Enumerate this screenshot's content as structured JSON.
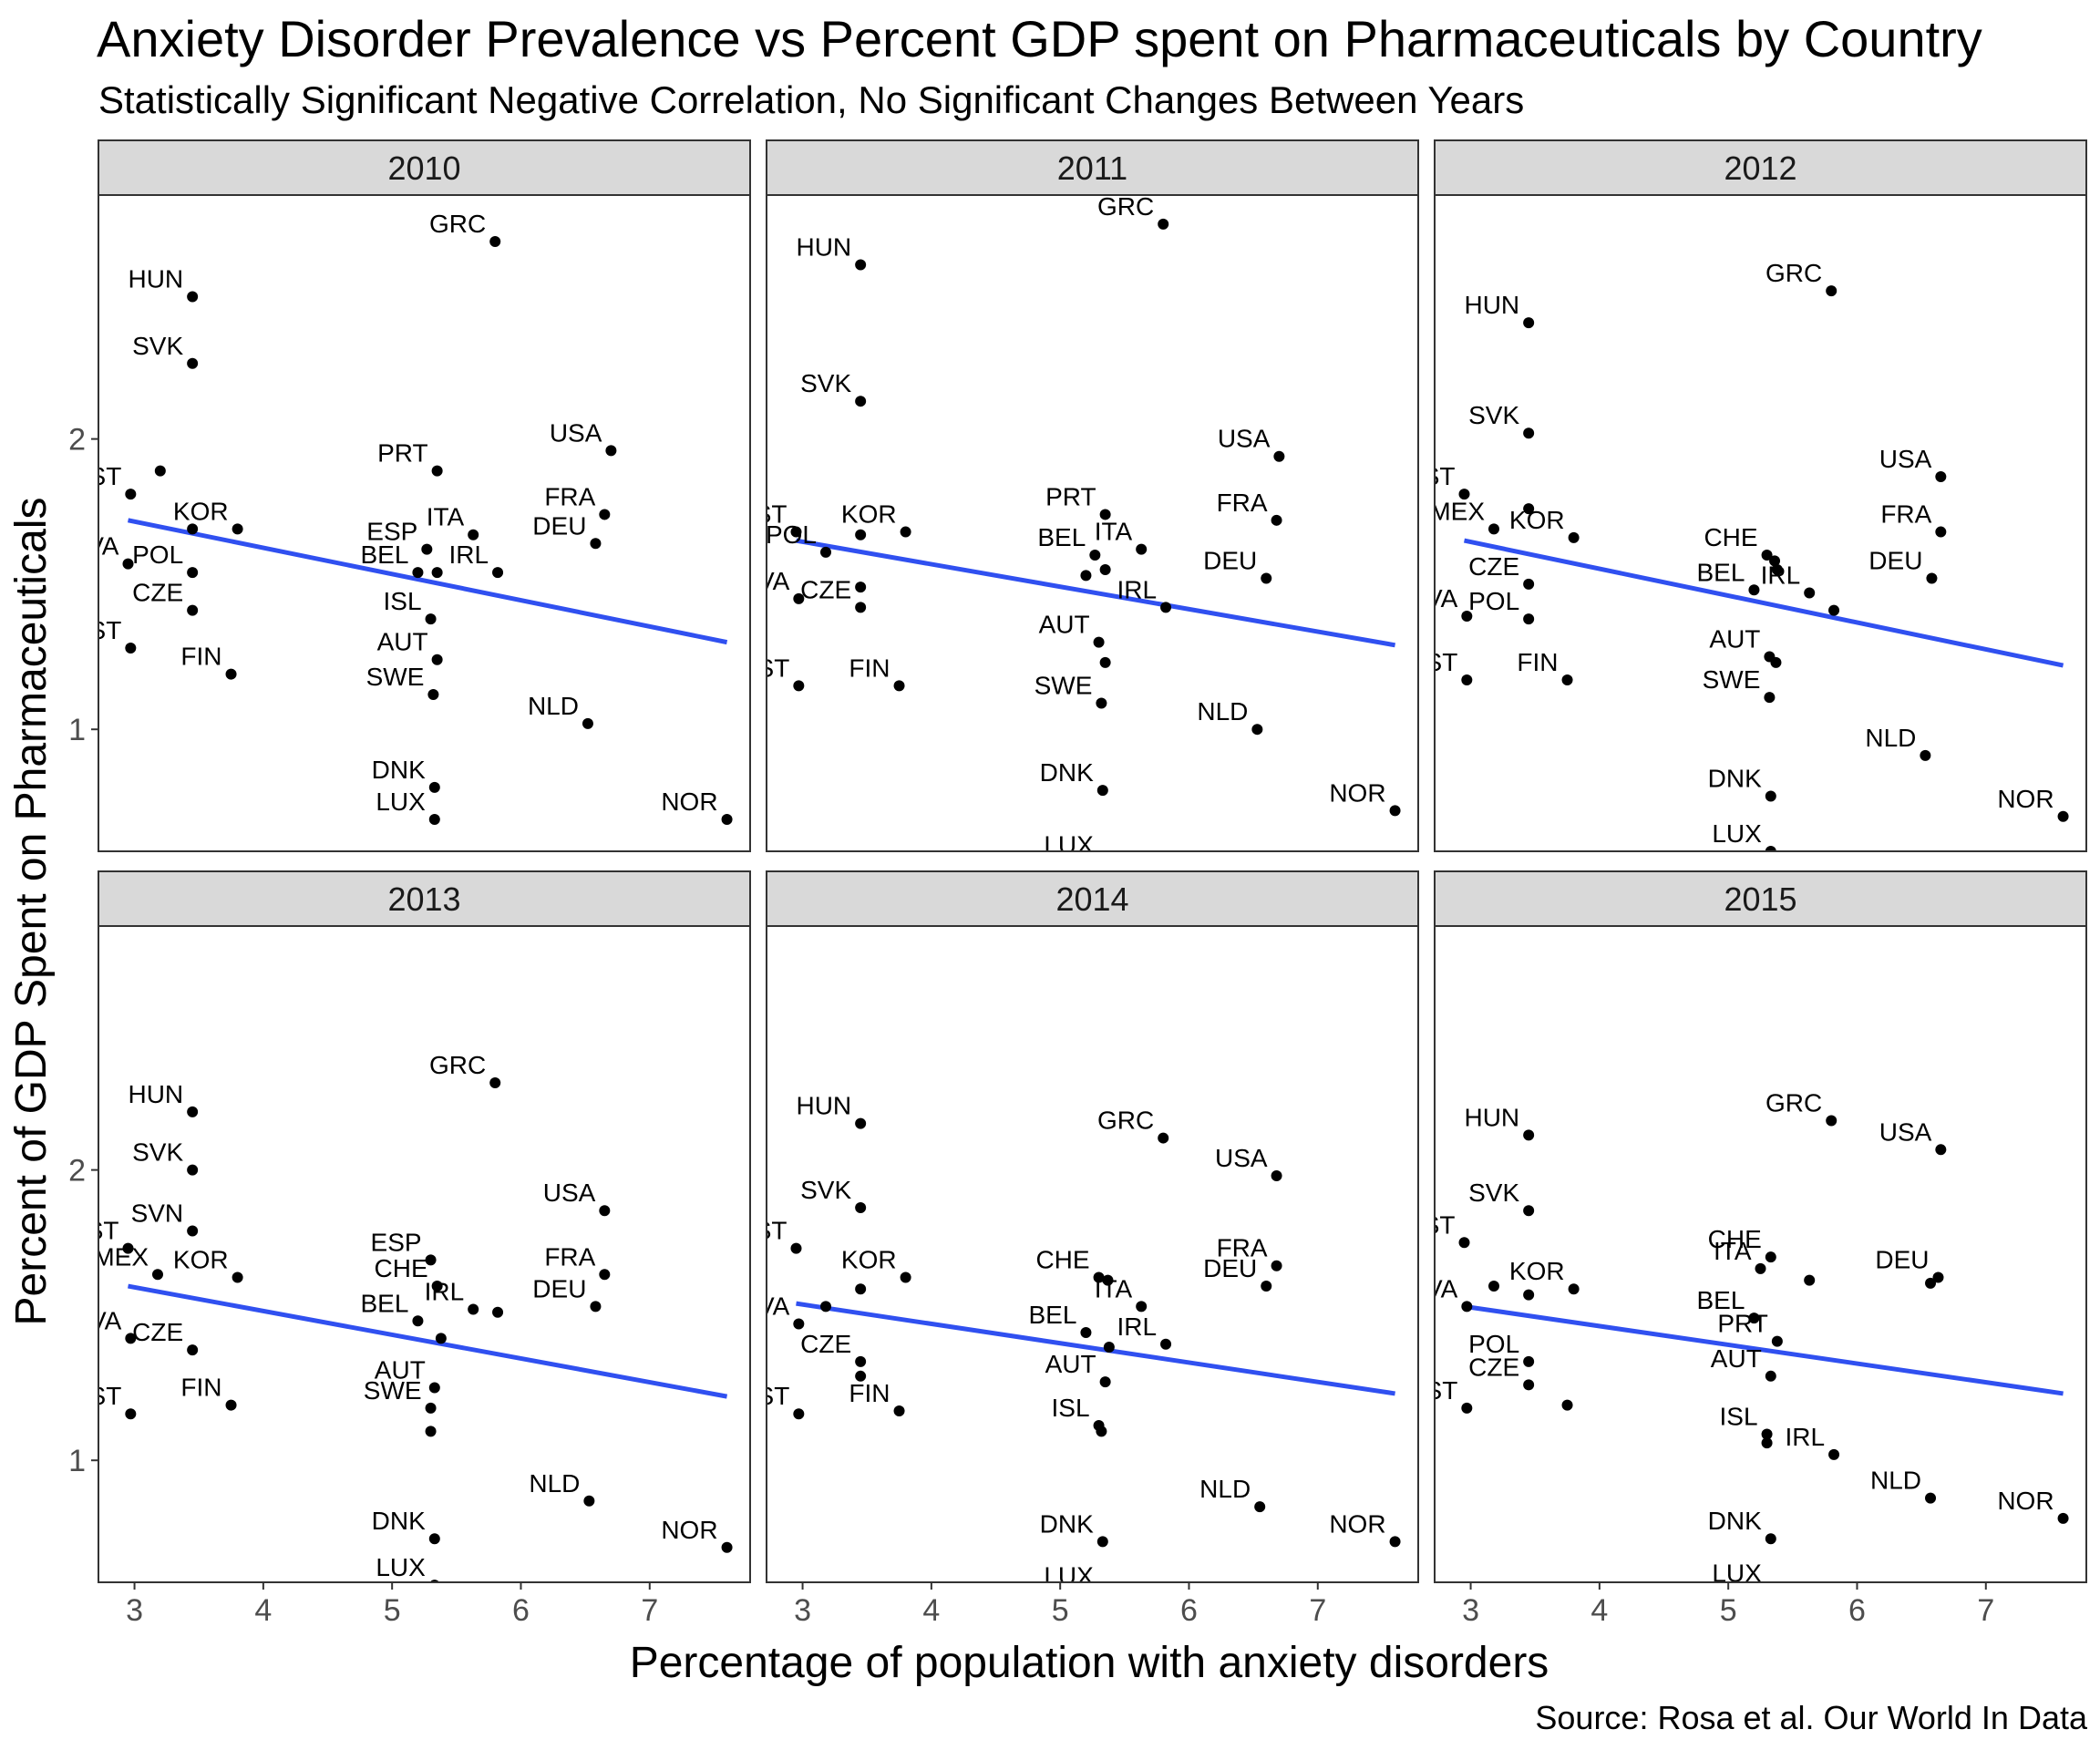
{
  "chart_data": {
    "type": "scatter",
    "title": "Anxiety Disorder Prevalence vs Percent GDP spent on Pharmaceuticals by Country",
    "subtitle": "Statistically Significant Negative Correlation, No Significant Changes Between Years",
    "xlabel": "Percentage of population with anxiety disorders",
    "ylabel": "Percent of GDP Spent on Pharmaceuticals",
    "caption": "Source: Rosa et al. Our World In Data",
    "xlim": [
      2.72,
      7.78
    ],
    "ylim": [
      0.58,
      2.84
    ],
    "x_ticks": [
      3,
      4,
      5,
      6,
      7
    ],
    "y_ticks": [
      1,
      2
    ],
    "grid": false,
    "facets": [
      {
        "panel": "2010",
        "trend": {
          "x": [
            2.95,
            7.6
          ],
          "y": [
            1.72,
            1.3
          ]
        },
        "points": [
          {
            "label": "GRC",
            "x": 5.8,
            "y": 2.68
          },
          {
            "label": "HUN",
            "x": 3.45,
            "y": 2.49
          },
          {
            "label": "SVK",
            "x": 3.45,
            "y": 2.26
          },
          {
            "label": "USA",
            "x": 6.7,
            "y": 1.96
          },
          {
            "label": "PRT",
            "x": 5.35,
            "y": 1.89
          },
          {
            "label": "",
            "x": 3.2,
            "y": 1.89
          },
          {
            "label": "EST",
            "x": 2.97,
            "y": 1.81
          },
          {
            "label": "FRA",
            "x": 6.65,
            "y": 1.74
          },
          {
            "label": "KOR",
            "x": 3.8,
            "y": 1.69
          },
          {
            "label": "",
            "x": 3.45,
            "y": 1.69
          },
          {
            "label": "ITA",
            "x": 5.63,
            "y": 1.67
          },
          {
            "label": "DEU",
            "x": 6.58,
            "y": 1.64
          },
          {
            "label": "ESP",
            "x": 5.27,
            "y": 1.62
          },
          {
            "label": "LVA",
            "x": 2.95,
            "y": 1.57
          },
          {
            "label": "POL",
            "x": 3.45,
            "y": 1.54
          },
          {
            "label": "BEL",
            "x": 5.2,
            "y": 1.54
          },
          {
            "label": "IRL",
            "x": 5.82,
            "y": 1.54
          },
          {
            "label": "",
            "x": 5.35,
            "y": 1.54
          },
          {
            "label": "CZE",
            "x": 3.45,
            "y": 1.41
          },
          {
            "label": "ISL",
            "x": 5.3,
            "y": 1.38
          },
          {
            "label": "EST",
            "x": 2.97,
            "y": 1.28
          },
          {
            "label": "AUT",
            "x": 5.35,
            "y": 1.24
          },
          {
            "label": "FIN",
            "x": 3.75,
            "y": 1.19
          },
          {
            "label": "SWE",
            "x": 5.32,
            "y": 1.12
          },
          {
            "label": "NLD",
            "x": 6.52,
            "y": 1.02
          },
          {
            "label": "DNK",
            "x": 5.33,
            "y": 0.8
          },
          {
            "label": "LUX",
            "x": 5.33,
            "y": 0.69
          },
          {
            "label": "NOR",
            "x": 7.6,
            "y": 0.69
          }
        ]
      },
      {
        "panel": "2011",
        "trend": {
          "x": [
            2.95,
            7.6
          ],
          "y": [
            1.65,
            1.29
          ]
        },
        "points": [
          {
            "label": "GRC",
            "x": 5.8,
            "y": 2.74
          },
          {
            "label": "HUN",
            "x": 3.45,
            "y": 2.6
          },
          {
            "label": "SVK",
            "x": 3.45,
            "y": 2.13
          },
          {
            "label": "USA",
            "x": 6.7,
            "y": 1.94
          },
          {
            "label": "PRT",
            "x": 5.35,
            "y": 1.74
          },
          {
            "label": "FRA",
            "x": 6.68,
            "y": 1.72
          },
          {
            "label": "EST",
            "x": 2.95,
            "y": 1.68
          },
          {
            "label": "KOR",
            "x": 3.8,
            "y": 1.68
          },
          {
            "label": "",
            "x": 3.45,
            "y": 1.67
          },
          {
            "label": "ITA",
            "x": 5.63,
            "y": 1.62
          },
          {
            "label": "POL",
            "x": 3.18,
            "y": 1.61
          },
          {
            "label": "BEL",
            "x": 5.27,
            "y": 1.6
          },
          {
            "label": "",
            "x": 5.35,
            "y": 1.55
          },
          {
            "label": "",
            "x": 5.2,
            "y": 1.53
          },
          {
            "label": "DEU",
            "x": 6.6,
            "y": 1.52
          },
          {
            "label": "",
            "x": 3.45,
            "y": 1.49
          },
          {
            "label": "LVA",
            "x": 2.97,
            "y": 1.45
          },
          {
            "label": "CZE",
            "x": 3.45,
            "y": 1.42
          },
          {
            "label": "IRL",
            "x": 5.82,
            "y": 1.42
          },
          {
            "label": "AUT",
            "x": 5.3,
            "y": 1.3
          },
          {
            "label": "",
            "x": 5.35,
            "y": 1.23
          },
          {
            "label": "EST",
            "x": 2.97,
            "y": 1.15
          },
          {
            "label": "FIN",
            "x": 3.75,
            "y": 1.15
          },
          {
            "label": "SWE",
            "x": 5.32,
            "y": 1.09
          },
          {
            "label": "NLD",
            "x": 6.53,
            "y": 1.0
          },
          {
            "label": "DNK",
            "x": 5.33,
            "y": 0.79
          },
          {
            "label": "NOR",
            "x": 7.6,
            "y": 0.72
          },
          {
            "label": "LUX",
            "x": 5.33,
            "y": 0.54
          }
        ]
      },
      {
        "panel": "2012",
        "trend": {
          "x": [
            2.95,
            7.6
          ],
          "y": [
            1.65,
            1.22
          ]
        },
        "points": [
          {
            "label": "GRC",
            "x": 5.8,
            "y": 2.51
          },
          {
            "label": "HUN",
            "x": 3.45,
            "y": 2.4
          },
          {
            "label": "SVK",
            "x": 3.45,
            "y": 2.02
          },
          {
            "label": "USA",
            "x": 6.65,
            "y": 1.87
          },
          {
            "label": "EST",
            "x": 2.95,
            "y": 1.81
          },
          {
            "label": "",
            "x": 3.45,
            "y": 1.76
          },
          {
            "label": "MEX",
            "x": 3.18,
            "y": 1.69
          },
          {
            "label": "FRA",
            "x": 6.65,
            "y": 1.68
          },
          {
            "label": "KOR",
            "x": 3.8,
            "y": 1.66
          },
          {
            "label": "CHE",
            "x": 5.3,
            "y": 1.6
          },
          {
            "label": "",
            "x": 5.36,
            "y": 1.58
          },
          {
            "label": "",
            "x": 5.38,
            "y": 1.55
          },
          {
            "label": "DEU",
            "x": 6.58,
            "y": 1.52
          },
          {
            "label": "CZE",
            "x": 3.45,
            "y": 1.5
          },
          {
            "label": "BEL",
            "x": 5.2,
            "y": 1.48
          },
          {
            "label": "IRL",
            "x": 5.63,
            "y": 1.47
          },
          {
            "label": "",
            "x": 5.82,
            "y": 1.41
          },
          {
            "label": "LVA",
            "x": 2.97,
            "y": 1.39
          },
          {
            "label": "POL",
            "x": 3.45,
            "y": 1.38
          },
          {
            "label": "AUT",
            "x": 5.32,
            "y": 1.25
          },
          {
            "label": "",
            "x": 5.37,
            "y": 1.23
          },
          {
            "label": "EST",
            "x": 2.97,
            "y": 1.17
          },
          {
            "label": "FIN",
            "x": 3.75,
            "y": 1.17
          },
          {
            "label": "SWE",
            "x": 5.32,
            "y": 1.11
          },
          {
            "label": "NLD",
            "x": 6.53,
            "y": 0.91
          },
          {
            "label": "DNK",
            "x": 5.33,
            "y": 0.77
          },
          {
            "label": "NOR",
            "x": 7.6,
            "y": 0.7
          },
          {
            "label": "LUX",
            "x": 5.33,
            "y": 0.58
          }
        ]
      },
      {
        "panel": "2013",
        "trend": {
          "x": [
            2.95,
            7.6
          ],
          "y": [
            1.6,
            1.22
          ]
        },
        "points": [
          {
            "label": "GRC",
            "x": 5.8,
            "y": 2.3
          },
          {
            "label": "HUN",
            "x": 3.45,
            "y": 2.2
          },
          {
            "label": "SVK",
            "x": 3.45,
            "y": 2.0
          },
          {
            "label": "USA",
            "x": 6.65,
            "y": 1.86
          },
          {
            "label": "SVN",
            "x": 3.45,
            "y": 1.79
          },
          {
            "label": "EST",
            "x": 2.95,
            "y": 1.73
          },
          {
            "label": "ESP",
            "x": 5.3,
            "y": 1.69
          },
          {
            "label": "MEX",
            "x": 3.18,
            "y": 1.64
          },
          {
            "label": "KOR",
            "x": 3.8,
            "y": 1.63
          },
          {
            "label": "FRA",
            "x": 6.65,
            "y": 1.64
          },
          {
            "label": "CHE",
            "x": 5.35,
            "y": 1.6
          },
          {
            "label": "IRL",
            "x": 5.63,
            "y": 1.52
          },
          {
            "label": "",
            "x": 5.82,
            "y": 1.51
          },
          {
            "label": "DEU",
            "x": 6.58,
            "y": 1.53
          },
          {
            "label": "BEL",
            "x": 5.2,
            "y": 1.48
          },
          {
            "label": "",
            "x": 5.38,
            "y": 1.42
          },
          {
            "label": "LVA",
            "x": 2.97,
            "y": 1.42
          },
          {
            "label": "CZE",
            "x": 3.45,
            "y": 1.38
          },
          {
            "label": "AUT",
            "x": 5.33,
            "y": 1.25
          },
          {
            "label": "SWE",
            "x": 5.3,
            "y": 1.18
          },
          {
            "label": "",
            "x": 5.3,
            "y": 1.1
          },
          {
            "label": "FIN",
            "x": 3.75,
            "y": 1.19
          },
          {
            "label": "EST",
            "x": 2.97,
            "y": 1.16
          },
          {
            "label": "NLD",
            "x": 6.53,
            "y": 0.86
          },
          {
            "label": "DNK",
            "x": 5.33,
            "y": 0.73
          },
          {
            "label": "NOR",
            "x": 7.6,
            "y": 0.7
          },
          {
            "label": "LUX",
            "x": 5.33,
            "y": 0.57
          }
        ]
      },
      {
        "panel": "2014",
        "trend": {
          "x": [
            2.95,
            7.6
          ],
          "y": [
            1.54,
            1.23
          ]
        },
        "points": [
          {
            "label": "HUN",
            "x": 3.45,
            "y": 2.16
          },
          {
            "label": "GRC",
            "x": 5.8,
            "y": 2.11
          },
          {
            "label": "USA",
            "x": 6.68,
            "y": 1.98
          },
          {
            "label": "SVK",
            "x": 3.45,
            "y": 1.87
          },
          {
            "label": "EST",
            "x": 2.95,
            "y": 1.73
          },
          {
            "label": "FRA",
            "x": 6.68,
            "y": 1.67
          },
          {
            "label": "KOR",
            "x": 3.8,
            "y": 1.63
          },
          {
            "label": "CHE",
            "x": 5.3,
            "y": 1.63
          },
          {
            "label": "",
            "x": 5.37,
            "y": 1.62
          },
          {
            "label": "DEU",
            "x": 6.6,
            "y": 1.6
          },
          {
            "label": "",
            "x": 3.45,
            "y": 1.59
          },
          {
            "label": "ITA",
            "x": 5.63,
            "y": 1.53
          },
          {
            "label": "",
            "x": 3.18,
            "y": 1.53
          },
          {
            "label": "LVA",
            "x": 2.97,
            "y": 1.47
          },
          {
            "label": "BEL",
            "x": 5.2,
            "y": 1.44
          },
          {
            "label": "IRL",
            "x": 5.82,
            "y": 1.4
          },
          {
            "label": "",
            "x": 5.38,
            "y": 1.39
          },
          {
            "label": "CZE",
            "x": 3.45,
            "y": 1.34
          },
          {
            "label": "",
            "x": 3.45,
            "y": 1.29
          },
          {
            "label": "AUT",
            "x": 5.35,
            "y": 1.27
          },
          {
            "label": "FIN",
            "x": 3.75,
            "y": 1.17
          },
          {
            "label": "EST",
            "x": 2.97,
            "y": 1.16
          },
          {
            "label": "ISL",
            "x": 5.3,
            "y": 1.12
          },
          {
            "label": "",
            "x": 5.32,
            "y": 1.1
          },
          {
            "label": "NLD",
            "x": 6.55,
            "y": 0.84
          },
          {
            "label": "DNK",
            "x": 5.33,
            "y": 0.72
          },
          {
            "label": "NOR",
            "x": 7.6,
            "y": 0.72
          },
          {
            "label": "LUX",
            "x": 5.33,
            "y": 0.54
          }
        ]
      },
      {
        "panel": "2015",
        "trend": {
          "x": [
            2.95,
            7.6
          ],
          "y": [
            1.53,
            1.23
          ]
        },
        "points": [
          {
            "label": "GRC",
            "x": 5.8,
            "y": 2.17
          },
          {
            "label": "HUN",
            "x": 3.45,
            "y": 2.12
          },
          {
            "label": "USA",
            "x": 6.65,
            "y": 2.07
          },
          {
            "label": "SVK",
            "x": 3.45,
            "y": 1.86
          },
          {
            "label": "EST",
            "x": 2.95,
            "y": 1.75
          },
          {
            "label": "CHE",
            "x": 5.33,
            "y": 1.7
          },
          {
            "label": "ITA",
            "x": 5.25,
            "y": 1.66
          },
          {
            "label": "DEU",
            "x": 6.63,
            "y": 1.63
          },
          {
            "label": "",
            "x": 5.63,
            "y": 1.62
          },
          {
            "label": "",
            "x": 6.57,
            "y": 1.61
          },
          {
            "label": "",
            "x": 3.18,
            "y": 1.6
          },
          {
            "label": "KOR",
            "x": 3.8,
            "y": 1.59
          },
          {
            "label": "",
            "x": 3.45,
            "y": 1.57
          },
          {
            "label": "LVA",
            "x": 2.97,
            "y": 1.53
          },
          {
            "label": "BEL",
            "x": 5.2,
            "y": 1.49
          },
          {
            "label": "PRT",
            "x": 5.38,
            "y": 1.41
          },
          {
            "label": "POL",
            "x": 3.45,
            "y": 1.34
          },
          {
            "label": "AUT",
            "x": 5.33,
            "y": 1.29
          },
          {
            "label": "CZE",
            "x": 3.45,
            "y": 1.26
          },
          {
            "label": "",
            "x": 3.75,
            "y": 1.19
          },
          {
            "label": "EST",
            "x": 2.97,
            "y": 1.18
          },
          {
            "label": "ISL",
            "x": 5.3,
            "y": 1.09
          },
          {
            "label": "",
            "x": 5.3,
            "y": 1.06
          },
          {
            "label": "IRL",
            "x": 5.82,
            "y": 1.02
          },
          {
            "label": "NLD",
            "x": 6.57,
            "y": 0.87
          },
          {
            "label": "NOR",
            "x": 7.6,
            "y": 0.8
          },
          {
            "label": "DNK",
            "x": 5.33,
            "y": 0.73
          },
          {
            "label": "LUX",
            "x": 5.33,
            "y": 0.55
          }
        ]
      }
    ],
    "colors": {
      "trend_line": "#3050f0",
      "point": "#000000",
      "strip_fill": "#d9d9d9",
      "panel_border": "#333333"
    }
  }
}
